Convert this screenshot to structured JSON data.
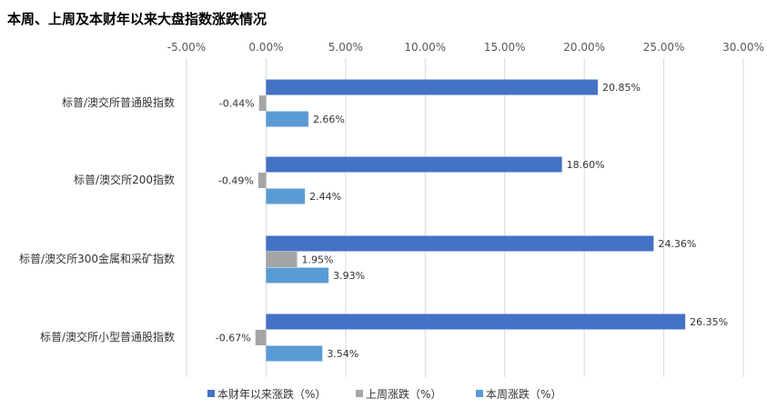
{
  "chart_data": {
    "type": "bar",
    "orientation": "horizontal",
    "title": "本周、上周及本财年以来大盘指数涨跌情况",
    "xlim": [
      -5,
      30
    ],
    "x_ticks": [
      "-5.00%",
      "0.00%",
      "5.00%",
      "10.00%",
      "15.00%",
      "20.00%",
      "25.00%",
      "30.00%"
    ],
    "x_tick_values": [
      -5,
      0,
      5,
      10,
      15,
      20,
      25,
      30
    ],
    "axis_position": "top",
    "grid": true,
    "legend_position": "bottom",
    "categories": [
      "标普/澳交所普通股指数",
      "标普/澳交所200指数",
      "标普/澳交所300金属和采矿指数",
      "标普/澳交所小型普通股指数"
    ],
    "series": [
      {
        "name": "本财年以来涨跌（%）",
        "color": "#4472c4",
        "values": [
          20.85,
          18.6,
          24.36,
          26.35
        ],
        "labels": [
          "20.85%",
          "18.60%",
          "24.36%",
          "26.35%"
        ]
      },
      {
        "name": "上周涨跌（%）",
        "color": "#a5a5a5",
        "values": [
          -0.44,
          -0.49,
          1.95,
          -0.67
        ],
        "labels": [
          "-0.44%",
          "-0.49%",
          "1.95%",
          "-0.67%"
        ]
      },
      {
        "name": "本周涨跌（%）",
        "color": "#5b9bd5",
        "values": [
          2.66,
          2.44,
          3.93,
          3.54
        ],
        "labels": [
          "2.66%",
          "2.44%",
          "3.93%",
          "3.54%"
        ]
      }
    ]
  }
}
